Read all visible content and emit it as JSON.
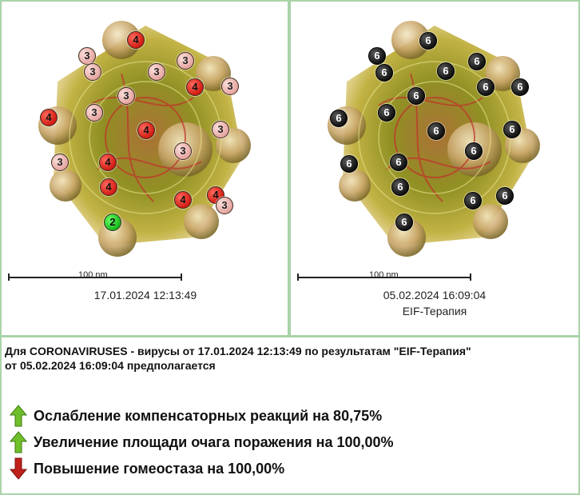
{
  "left_panel": {
    "scale_label": "100 nm",
    "date": "17.01.2024 12:13:49",
    "badges": [
      {
        "n": "4",
        "color": "red"
      },
      {
        "n": "3",
        "color": "pink"
      },
      {
        "n": "3",
        "color": "pink"
      },
      {
        "n": "3",
        "color": "pink"
      },
      {
        "n": "3",
        "color": "pink"
      },
      {
        "n": "3",
        "color": "pink"
      },
      {
        "n": "4",
        "color": "red"
      },
      {
        "n": "3",
        "color": "pink"
      },
      {
        "n": "3",
        "color": "pink"
      },
      {
        "n": "4",
        "color": "red"
      },
      {
        "n": "3",
        "color": "pink"
      },
      {
        "n": "4",
        "color": "red"
      },
      {
        "n": "3",
        "color": "pink"
      },
      {
        "n": "4",
        "color": "red"
      },
      {
        "n": "3",
        "color": "pink"
      },
      {
        "n": "4",
        "color": "red"
      },
      {
        "n": "4",
        "color": "red"
      },
      {
        "n": "4",
        "color": "red"
      },
      {
        "n": "3",
        "color": "pink"
      },
      {
        "n": "2",
        "color": "green"
      }
    ]
  },
  "right_panel": {
    "scale_label": "100 nm",
    "date": "05.02.2024 16:09:04",
    "therapy": "EIF-Терапия",
    "badges": [
      {
        "n": "6",
        "color": "black"
      },
      {
        "n": "6",
        "color": "black"
      },
      {
        "n": "6",
        "color": "black"
      },
      {
        "n": "6",
        "color": "black"
      },
      {
        "n": "6",
        "color": "black"
      },
      {
        "n": "6",
        "color": "black"
      },
      {
        "n": "6",
        "color": "black"
      },
      {
        "n": "6",
        "color": "black"
      },
      {
        "n": "6",
        "color": "black"
      },
      {
        "n": "6",
        "color": "black"
      },
      {
        "n": "6",
        "color": "black"
      },
      {
        "n": "6",
        "color": "black"
      },
      {
        "n": "6",
        "color": "black"
      },
      {
        "n": "6",
        "color": "black"
      },
      {
        "n": "6",
        "color": "black"
      },
      {
        "n": "6",
        "color": "black"
      },
      {
        "n": "6",
        "color": "black"
      },
      {
        "n": "6",
        "color": "black"
      },
      {
        "n": "6",
        "color": "black"
      }
    ]
  },
  "description": {
    "line1": "Для CORONAVIRUSES - вирусы от 17.01.2024 12:13:49 по результатам \"EIF-Терапия\"",
    "line2": "от 05.02.2024 16:09:04 предполагается"
  },
  "results": [
    {
      "direction": "up",
      "arrow_color": "#6fbf2a",
      "text": "Ослабление компенсаторных реакций на 80,75%"
    },
    {
      "direction": "up",
      "arrow_color": "#6fbf2a",
      "text": "Увеличение площади очага поражения на 100,00%"
    },
    {
      "direction": "down",
      "arrow_color": "#c0201a",
      "text": "Повышение гомеостаза на 100,00%"
    }
  ],
  "colors": {
    "divider": "#a9d3a9",
    "badge_red": "#d01b12",
    "badge_pink": "#e5a4a0",
    "badge_green": "#17b81a",
    "badge_black": "#111111"
  }
}
